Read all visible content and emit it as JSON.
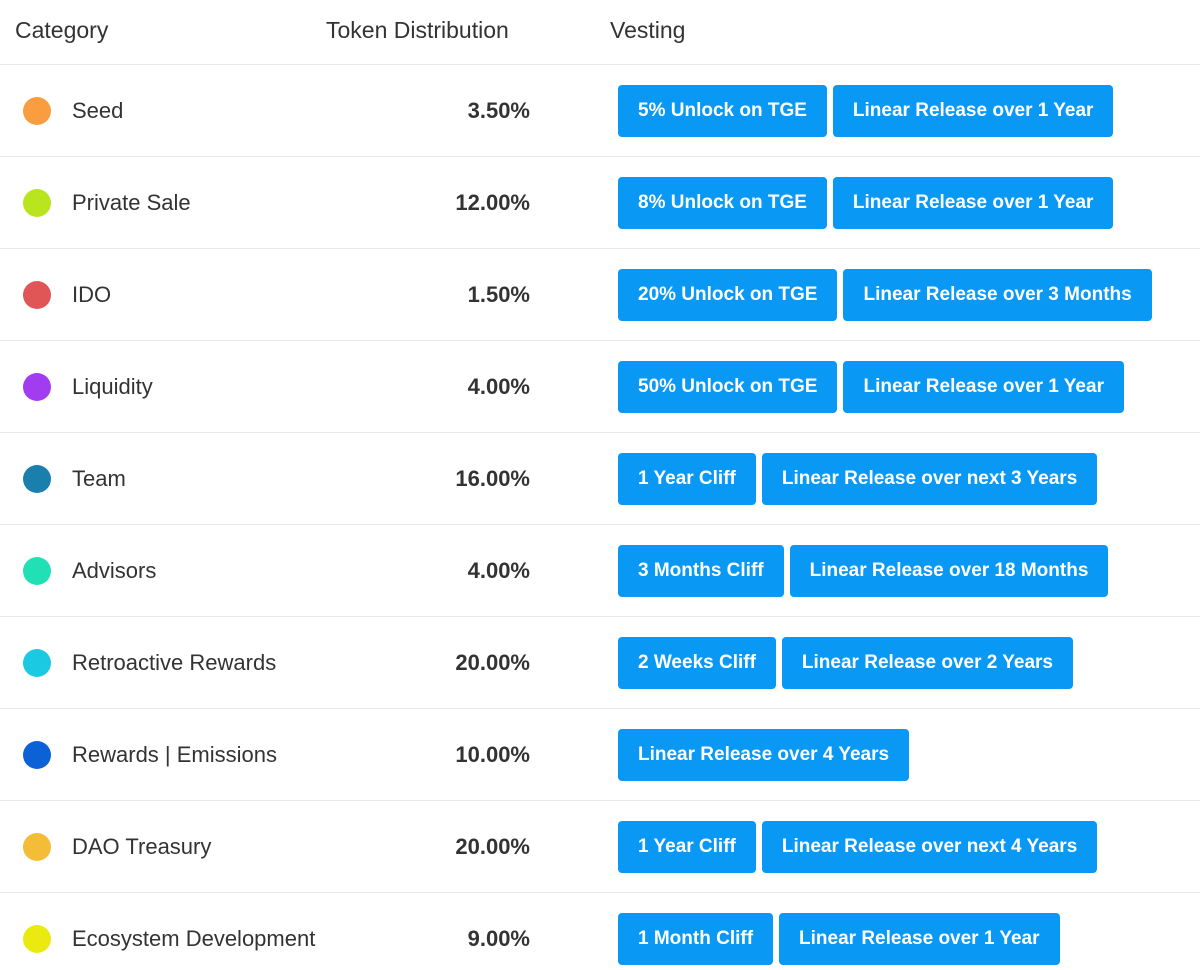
{
  "table": {
    "columns": [
      "Category",
      "Token Distribution",
      "Vesting"
    ],
    "rows": [
      {
        "color": "#f99d40",
        "category": "Seed",
        "distribution": "3.50%",
        "vesting": [
          "5% Unlock on TGE",
          "Linear Release over 1 Year"
        ]
      },
      {
        "color": "#b9e51f",
        "category": "Private Sale",
        "distribution": "12.00%",
        "vesting": [
          "8% Unlock on TGE",
          "Linear Release over 1 Year"
        ]
      },
      {
        "color": "#e05657",
        "category": "IDO",
        "distribution": "1.50%",
        "vesting": [
          "20% Unlock on TGE",
          "Linear Release over 3 Months"
        ]
      },
      {
        "color": "#a23cf0",
        "category": "Liquidity",
        "distribution": "4.00%",
        "vesting": [
          "50% Unlock on TGE",
          "Linear Release over 1 Year"
        ]
      },
      {
        "color": "#1a7fad",
        "category": "Team",
        "distribution": "16.00%",
        "vesting": [
          "1 Year Cliff",
          "Linear Release over next 3 Years"
        ]
      },
      {
        "color": "#22e0b5",
        "category": "Advisors",
        "distribution": "4.00%",
        "vesting": [
          "3 Months Cliff",
          "Linear Release over 18 Months"
        ]
      },
      {
        "color": "#1bc9e3",
        "category": "Retroactive Rewards",
        "distribution": "20.00%",
        "vesting": [
          "2 Weeks Cliff",
          "Linear Release over 2 Years"
        ]
      },
      {
        "color": "#0b62d6",
        "category": "Rewards | Emissions",
        "distribution": "10.00%",
        "vesting": [
          "Linear Release over 4 Years"
        ]
      },
      {
        "color": "#f4bd37",
        "category": "DAO Treasury",
        "distribution": "20.00%",
        "vesting": [
          "1 Year Cliff",
          "Linear Release over next 4 Years"
        ]
      },
      {
        "color": "#eaea10",
        "category": "Ecosystem Development",
        "distribution": "9.00%",
        "vesting": [
          "1 Month Cliff",
          "Linear Release over 1 Year"
        ]
      }
    ]
  }
}
